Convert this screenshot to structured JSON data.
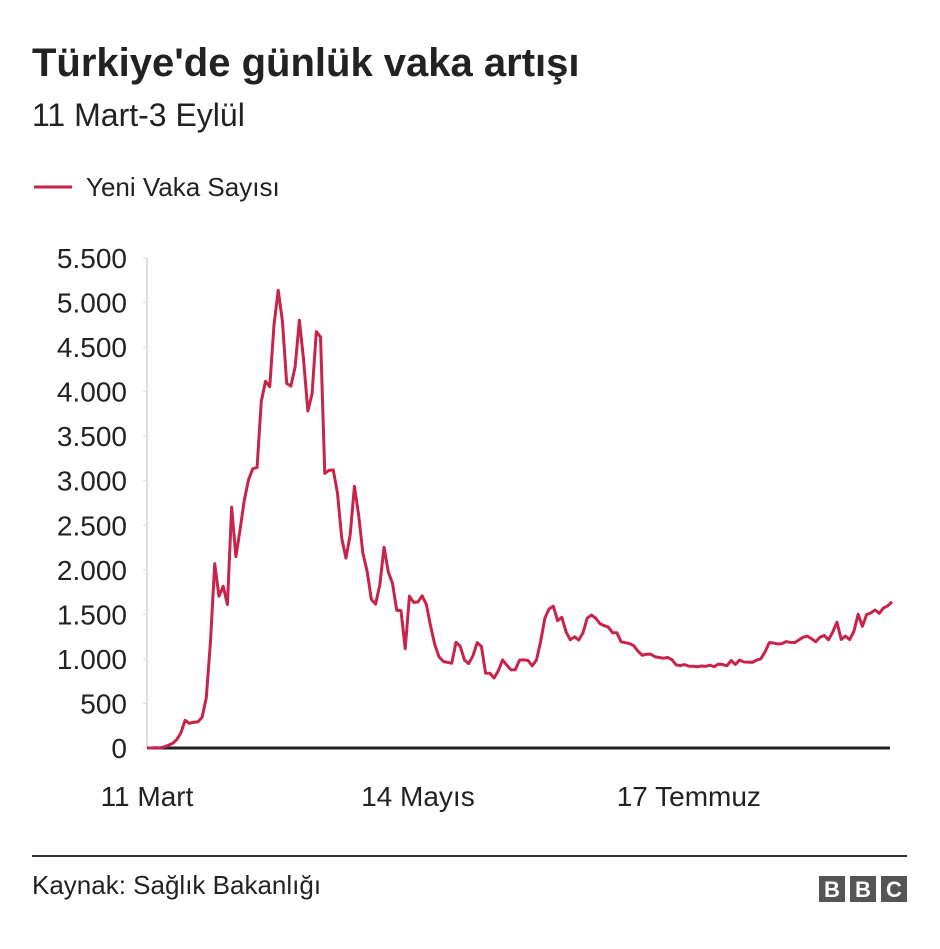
{
  "chart_data": {
    "type": "line",
    "title": "Türkiye'de günlük vaka artışı",
    "subtitle": "11 Mart-3 Eylül",
    "source": "Kaynak: Sağlık Bakanlığı",
    "categories": [
      "11 Mart",
      null,
      null,
      null,
      null,
      null,
      null,
      null,
      null,
      null,
      null,
      null,
      null,
      null,
      null,
      null,
      null,
      null,
      null,
      null,
      null,
      null,
      null,
      null,
      null,
      null,
      null,
      null,
      null,
      null,
      null,
      null,
      null,
      null,
      null,
      null,
      null,
      null,
      null,
      null,
      null,
      null,
      null,
      null,
      null,
      null,
      null,
      null,
      null,
      null,
      null,
      null,
      null,
      null,
      null,
      null,
      null,
      null,
      null,
      null,
      null,
      null,
      null,
      null,
      "14 Mayıs",
      null,
      null,
      null,
      null,
      null,
      null,
      null,
      null,
      null,
      null,
      null,
      null,
      null,
      null,
      null,
      null,
      null,
      null,
      null,
      null,
      null,
      null,
      null,
      null,
      null,
      null,
      null,
      null,
      null,
      null,
      null,
      null,
      null,
      null,
      null,
      null,
      null,
      null,
      null,
      null,
      null,
      null,
      null,
      null,
      null,
      null,
      null,
      null,
      null,
      null,
      null,
      null,
      null,
      null,
      null,
      null,
      null,
      null,
      null,
      null,
      null,
      null,
      null,
      "17 Temmuz",
      null,
      null,
      null,
      null,
      null,
      null,
      null,
      null,
      null,
      null,
      null,
      null,
      null,
      null,
      null,
      null,
      null,
      null,
      null,
      null,
      null,
      null,
      null,
      null,
      null,
      null,
      null,
      null,
      null,
      null,
      null,
      null,
      null,
      null,
      null,
      null,
      null,
      null,
      null,
      null,
      null,
      null,
      null,
      null,
      null,
      null,
      null,
      null
    ],
    "series": [
      {
        "name": "Yeni Vaka Sayısı",
        "color": "#c8234a",
        "values": [
          1,
          0,
          4,
          1,
          12,
          29,
          51,
          93,
          168,
          311,
          277,
          289,
          293,
          343,
          561,
          1196,
          2069,
          1704,
          1815,
          1610,
          2704,
          2148,
          2456,
          2786,
          3013,
          3135,
          3148,
          3892,
          4117,
          4056,
          4747,
          5138,
          4789,
          4093,
          4062,
          4281,
          4801,
          4353,
          3783,
          3977,
          4674,
          4611,
          3083,
          3116,
          3122,
          2861,
          2357,
          2131,
          2392,
          2936,
          2615,
          2188,
          1983,
          1670,
          1614,
          1832,
          2253,
          1977,
          1848,
          1546,
          1542,
          1114,
          1704,
          1635,
          1639,
          1708,
          1610,
          1368,
          1158,
          1022,
          972,
          961,
          952,
          1186,
          1141,
          987,
          948,
          1035,
          1182,
          1141,
          839,
          839,
          786,
          867,
          989,
          930,
          877,
          878,
          987,
          989,
          983,
          922,
          987,
          1195,
          1459,
          1562,
          1592,
          1429,
          1467,
          1304,
          1214,
          1248,
          1212,
          1293,
          1458,
          1492,
          1458,
          1396,
          1374,
          1356,
          1293,
          1293,
          1192,
          1182,
          1172,
          1148,
          1086,
          1041,
          1053,
          1054,
          1024,
          1016,
          1008,
          1016,
          992,
          933,
          926,
          936,
          919,
          918,
          912,
          920,
          917,
          929,
          913,
          942,
          937,
          923,
          982,
          938,
          987,
          966,
          964,
          961,
          986,
          1001,
          1077,
          1183,
          1178,
          1168,
          1172,
          1195,
          1185,
          1183,
          1212,
          1243,
          1256,
          1226,
          1192,
          1244,
          1263,
          1214,
          1302,
          1412,
          1218,
          1256,
          1217,
          1309,
          1502,
          1365,
          1497,
          1517,
          1549,
          1512,
          1572,
          1596,
          1642
        ]
      }
    ],
    "ylim": [
      0,
      5500
    ],
    "yticks": [
      0,
      500,
      {
        "value": 1000,
        "label": "1.000"
      },
      {
        "value": 1500,
        "label": "1.500"
      },
      {
        "value": 2000,
        "label": "2.000"
      },
      {
        "value": 2500,
        "label": "2.500"
      },
      {
        "value": 3000,
        "label": "3.000"
      },
      {
        "value": 3500,
        "label": "3.500"
      },
      {
        "value": 4000,
        "label": "4.000"
      },
      {
        "value": 4500,
        "label": "4.500"
      },
      {
        "value": 5000,
        "label": "5.000"
      },
      {
        "value": 5500,
        "label": "5.500"
      }
    ],
    "grid": false
  }
}
